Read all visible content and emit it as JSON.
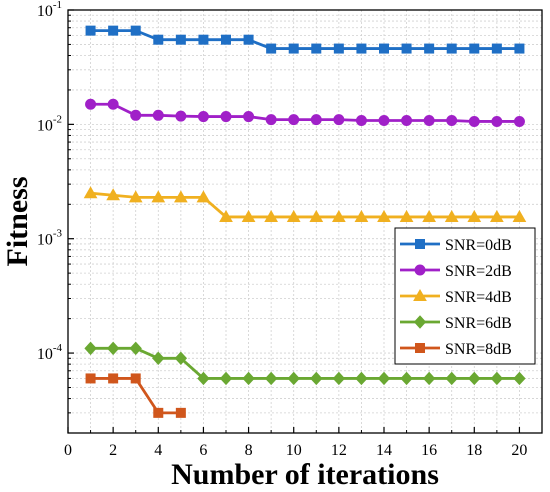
{
  "chart_data": {
    "type": "line",
    "xlabel": "Number of iterations",
    "ylabel": "Fitness",
    "xlim": [
      0,
      21
    ],
    "ylim": [
      2e-05,
      0.1
    ],
    "y_scale": "log",
    "grid": true,
    "legend_position": "right-center",
    "x_ticks": [
      "0",
      "2",
      "4",
      "6",
      "8",
      "10",
      "12",
      "14",
      "16",
      "18",
      "20"
    ],
    "y_ticks": [
      {
        "base": "10",
        "exp": "-1",
        "value": 0.1
      },
      {
        "base": "10",
        "exp": "-2",
        "value": 0.01
      },
      {
        "base": "10",
        "exp": "-3",
        "value": 0.001
      },
      {
        "base": "10",
        "exp": "-4",
        "value": 0.0001
      }
    ],
    "series": [
      {
        "name": "SNR=0dB",
        "color": "#1f6fc5",
        "marker": "square",
        "x": [
          1,
          2,
          3,
          4,
          5,
          6,
          7,
          8,
          9,
          10,
          11,
          12,
          13,
          14,
          15,
          16,
          17,
          18,
          19,
          20
        ],
        "y": [
          0.066,
          0.066,
          0.066,
          0.055,
          0.055,
          0.055,
          0.055,
          0.055,
          0.046,
          0.046,
          0.046,
          0.046,
          0.046,
          0.046,
          0.046,
          0.046,
          0.046,
          0.046,
          0.046,
          0.046
        ]
      },
      {
        "name": "SNR=2dB",
        "color": "#a020c8",
        "marker": "circle",
        "x": [
          1,
          2,
          3,
          4,
          5,
          6,
          7,
          8,
          9,
          10,
          11,
          12,
          13,
          14,
          15,
          16,
          17,
          18,
          19,
          20
        ],
        "y": [
          0.015,
          0.015,
          0.012,
          0.012,
          0.0118,
          0.0117,
          0.0117,
          0.0117,
          0.011,
          0.011,
          0.011,
          0.011,
          0.0108,
          0.0108,
          0.0108,
          0.0108,
          0.0108,
          0.0106,
          0.0106,
          0.0106
        ]
      },
      {
        "name": "SNR=4dB",
        "color": "#f0b020",
        "marker": "triangle",
        "x": [
          1,
          2,
          3,
          4,
          5,
          6,
          7,
          8,
          9,
          10,
          11,
          12,
          13,
          14,
          15,
          16,
          17,
          18,
          19,
          20
        ],
        "y": [
          0.0025,
          0.0024,
          0.0023,
          0.0023,
          0.0023,
          0.0023,
          0.00155,
          0.00155,
          0.00155,
          0.00155,
          0.00155,
          0.00155,
          0.00155,
          0.00155,
          0.00155,
          0.00155,
          0.00155,
          0.00155,
          0.00155,
          0.00155
        ]
      },
      {
        "name": "SNR=6dB",
        "color": "#6aa832",
        "marker": "diamond",
        "x": [
          1,
          2,
          3,
          4,
          5,
          6,
          7,
          8,
          9,
          10,
          11,
          12,
          13,
          14,
          15,
          16,
          17,
          18,
          19,
          20
        ],
        "y": [
          0.00011,
          0.00011,
          0.00011,
          9e-05,
          9e-05,
          6e-05,
          6e-05,
          6e-05,
          6e-05,
          6e-05,
          6e-05,
          6e-05,
          6e-05,
          6e-05,
          6e-05,
          6e-05,
          6e-05,
          6e-05,
          6e-05,
          6e-05
        ]
      },
      {
        "name": "SNR=8dB",
        "color": "#d0561c",
        "marker": "square",
        "x": [
          1,
          2,
          3,
          4,
          5
        ],
        "y": [
          6e-05,
          6e-05,
          6e-05,
          3e-05,
          3e-05
        ]
      }
    ]
  }
}
